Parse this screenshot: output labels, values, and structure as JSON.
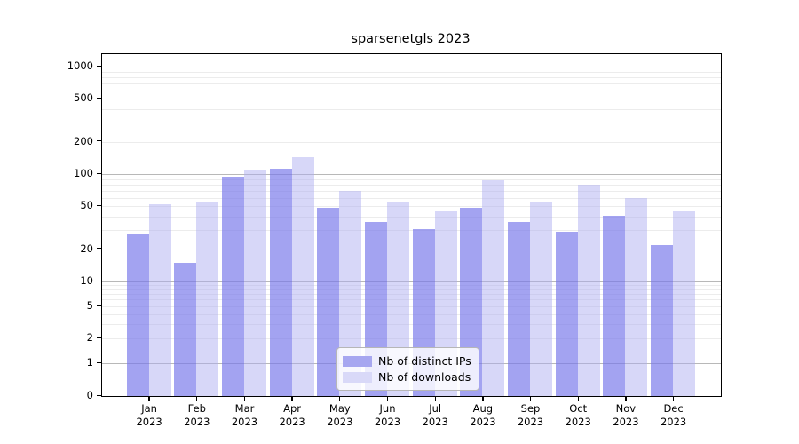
{
  "chart_data": {
    "type": "bar",
    "title": "sparsenetgls 2023",
    "categories": [
      "Jan 2023",
      "Feb 2023",
      "Mar 2023",
      "Apr 2023",
      "May 2023",
      "Jun 2023",
      "Jul 2023",
      "Aug 2023",
      "Sep 2023",
      "Oct 2023",
      "Nov 2023",
      "Dec 2023"
    ],
    "month_abbr": [
      "Jan",
      "Feb",
      "Mar",
      "Apr",
      "May",
      "Jun",
      "Jul",
      "Aug",
      "Sep",
      "Oct",
      "Nov",
      "Dec"
    ],
    "year": "2023",
    "series": [
      {
        "name": "Nb of distinct IPs",
        "color": "#a7a7f0",
        "fill": "rgba(118,118,234,0.67)",
        "values": [
          28,
          15,
          95,
          112,
          49,
          36,
          31,
          49,
          36,
          29,
          41,
          22
        ]
      },
      {
        "name": "Nb of downloads",
        "color": "#d9d9f8",
        "fill": "rgba(172,172,241,0.48)",
        "values": [
          52,
          55,
          110,
          145,
          70,
          55,
          45,
          87,
          56,
          80,
          60,
          45
        ]
      }
    ],
    "xlabel": "",
    "ylabel": "",
    "yscale": "log",
    "ylim": [
      0,
      1300
    ],
    "ytick_labels": [
      0,
      1,
      2,
      5,
      10,
      20,
      50,
      100,
      200,
      500,
      1000
    ],
    "grid": {
      "orientation": "horizontal",
      "major_values": [
        1,
        10,
        100,
        1000
      ],
      "minor_values": [
        2,
        3,
        4,
        5,
        6,
        7,
        8,
        9,
        20,
        30,
        40,
        50,
        60,
        70,
        80,
        90,
        200,
        300,
        400,
        500,
        600,
        700,
        800,
        900
      ],
      "major_color": "#b8b8b8",
      "minor_color": "#ececec"
    },
    "legend": {
      "position": "inside-bottom-center",
      "entries": [
        "Nb of distinct IPs",
        "Nb of downloads"
      ]
    }
  }
}
